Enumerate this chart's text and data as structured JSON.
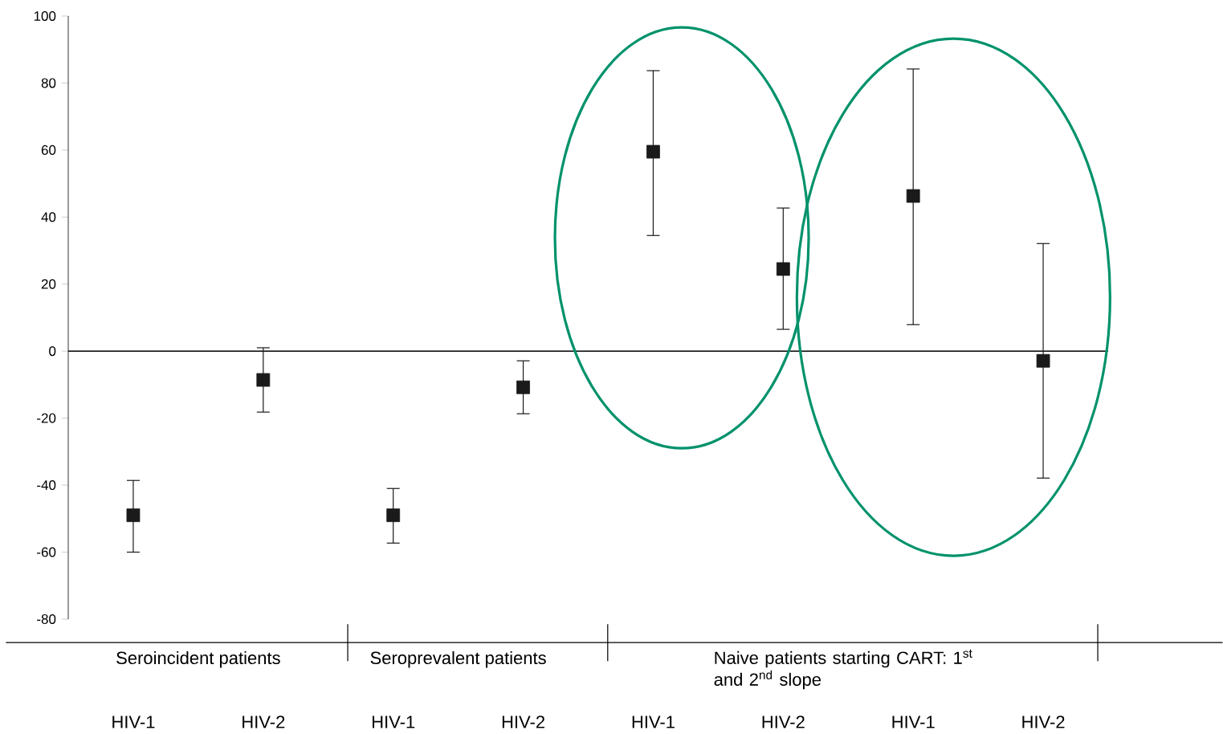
{
  "chart_data": {
    "type": "scatter",
    "categories": [
      "HIV-1",
      "HIV-2",
      "HIV-1",
      "HIV-2",
      "HIV-1",
      "HIV-2",
      "HIV-1",
      "HIV-2"
    ],
    "values": [
      -49,
      -8.6,
      -49,
      -10.8,
      59.5,
      24.5,
      46.3,
      -2.9
    ],
    "errors": [
      [
        -60,
        -38.6
      ],
      [
        -18.2,
        1
      ],
      [
        -57.3,
        -41
      ],
      [
        -18.7,
        -2.9
      ],
      [
        34.5,
        83.7
      ],
      [
        6.5,
        42.7
      ],
      [
        7.9,
        84.2
      ],
      [
        -37.9,
        32.1
      ]
    ],
    "color": "#1a1a1a",
    "marker": "square",
    "ylim": [
      -80,
      100
    ],
    "yticks": [
      -80,
      -60,
      -40,
      -20,
      0,
      20,
      40,
      60,
      80,
      100
    ],
    "ref_lines": [
      {
        "axis": "y",
        "value": 0,
        "color": "#000000"
      }
    ],
    "annotations": [
      "Seroincident patients",
      "Seroprevalent patients",
      "Naive patients starting CART: 1$^{st}$ and 2$^{nd}$ slope"
    ],
    "tick_labels": "y"
  }
}
